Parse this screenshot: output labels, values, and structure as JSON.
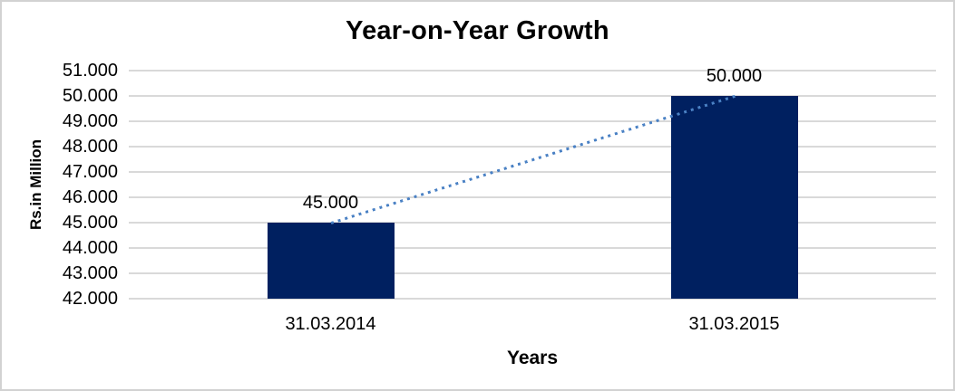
{
  "frame": {
    "background": "#ffffff",
    "border_color": "#d2d2d2"
  },
  "chart_data": {
    "type": "bar",
    "title": "Year-on-Year Growth",
    "xlabel": "Years",
    "ylabel": "Rs.in Million",
    "categories": [
      "31.03.2014",
      "31.03.2015"
    ],
    "series": [
      {
        "name": "Rs.in Million",
        "values": [
          45000,
          50000
        ],
        "value_labels": [
          "45.000",
          "50.000"
        ],
        "color": "#002060"
      }
    ],
    "trendline": {
      "style": "dotted",
      "color": "#4a81c4"
    },
    "y_axis": {
      "min": 42000,
      "max": 51000,
      "step": 1000,
      "tick_labels": [
        "51.000",
        "50.000",
        "49.000",
        "48.000",
        "47.000",
        "46.000",
        "45.000",
        "44.000",
        "43.000",
        "42.000"
      ]
    },
    "grid": "horizontal",
    "gridline_color": "#d9d9d9",
    "legend": "none",
    "text_color": "#000000"
  }
}
